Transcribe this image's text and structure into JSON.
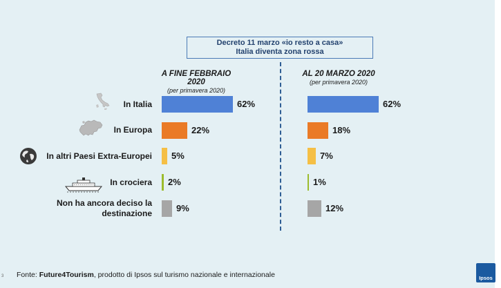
{
  "banner": {
    "line1": "Decreto 11 marzo «io resto a casa»",
    "line2": "Italia diventa zona rossa"
  },
  "column_left": {
    "title": "A FINE FEBBRAIO 2020",
    "subtitle": "(per primavera 2020)"
  },
  "column_right": {
    "title": "AL 20 MARZO 2020",
    "subtitle": "(per primavera 2020)"
  },
  "footer": {
    "prefix": "Fonte: ",
    "source_bold": "Future4Tourism",
    "suffix": ", prodotto di Ipsos sul turismo nazionale e internazionale"
  },
  "page_number": "3",
  "logo_text": "Ipsos",
  "icons": [
    "italy-map-icon",
    "europe-map-icon",
    "globe-icon",
    "cruise-ship-icon"
  ],
  "chart_data": {
    "type": "bar",
    "orientation": "horizontal",
    "categories": [
      "In Italia",
      "In Europa",
      "In altri Paesi Extra-Europei",
      "In crociera",
      "Non ha ancora deciso la destinazione"
    ],
    "colors": [
      "#4f81d6",
      "#ea7a26",
      "#f5bf45",
      "#9cbc2c",
      "#a6a6a6"
    ],
    "series": [
      {
        "name": "A FINE FEBBRAIO 2020",
        "values": [
          62,
          22,
          5,
          2,
          9
        ],
        "labels": [
          "62%",
          "22%",
          "5%",
          "2%",
          "9%"
        ]
      },
      {
        "name": "AL 20 MARZO 2020",
        "values": [
          62,
          18,
          7,
          1,
          12
        ],
        "labels": [
          "62%",
          "18%",
          "7%",
          "1%",
          "12%"
        ]
      }
    ],
    "unit": "%",
    "xlim": [
      0,
      100
    ]
  }
}
